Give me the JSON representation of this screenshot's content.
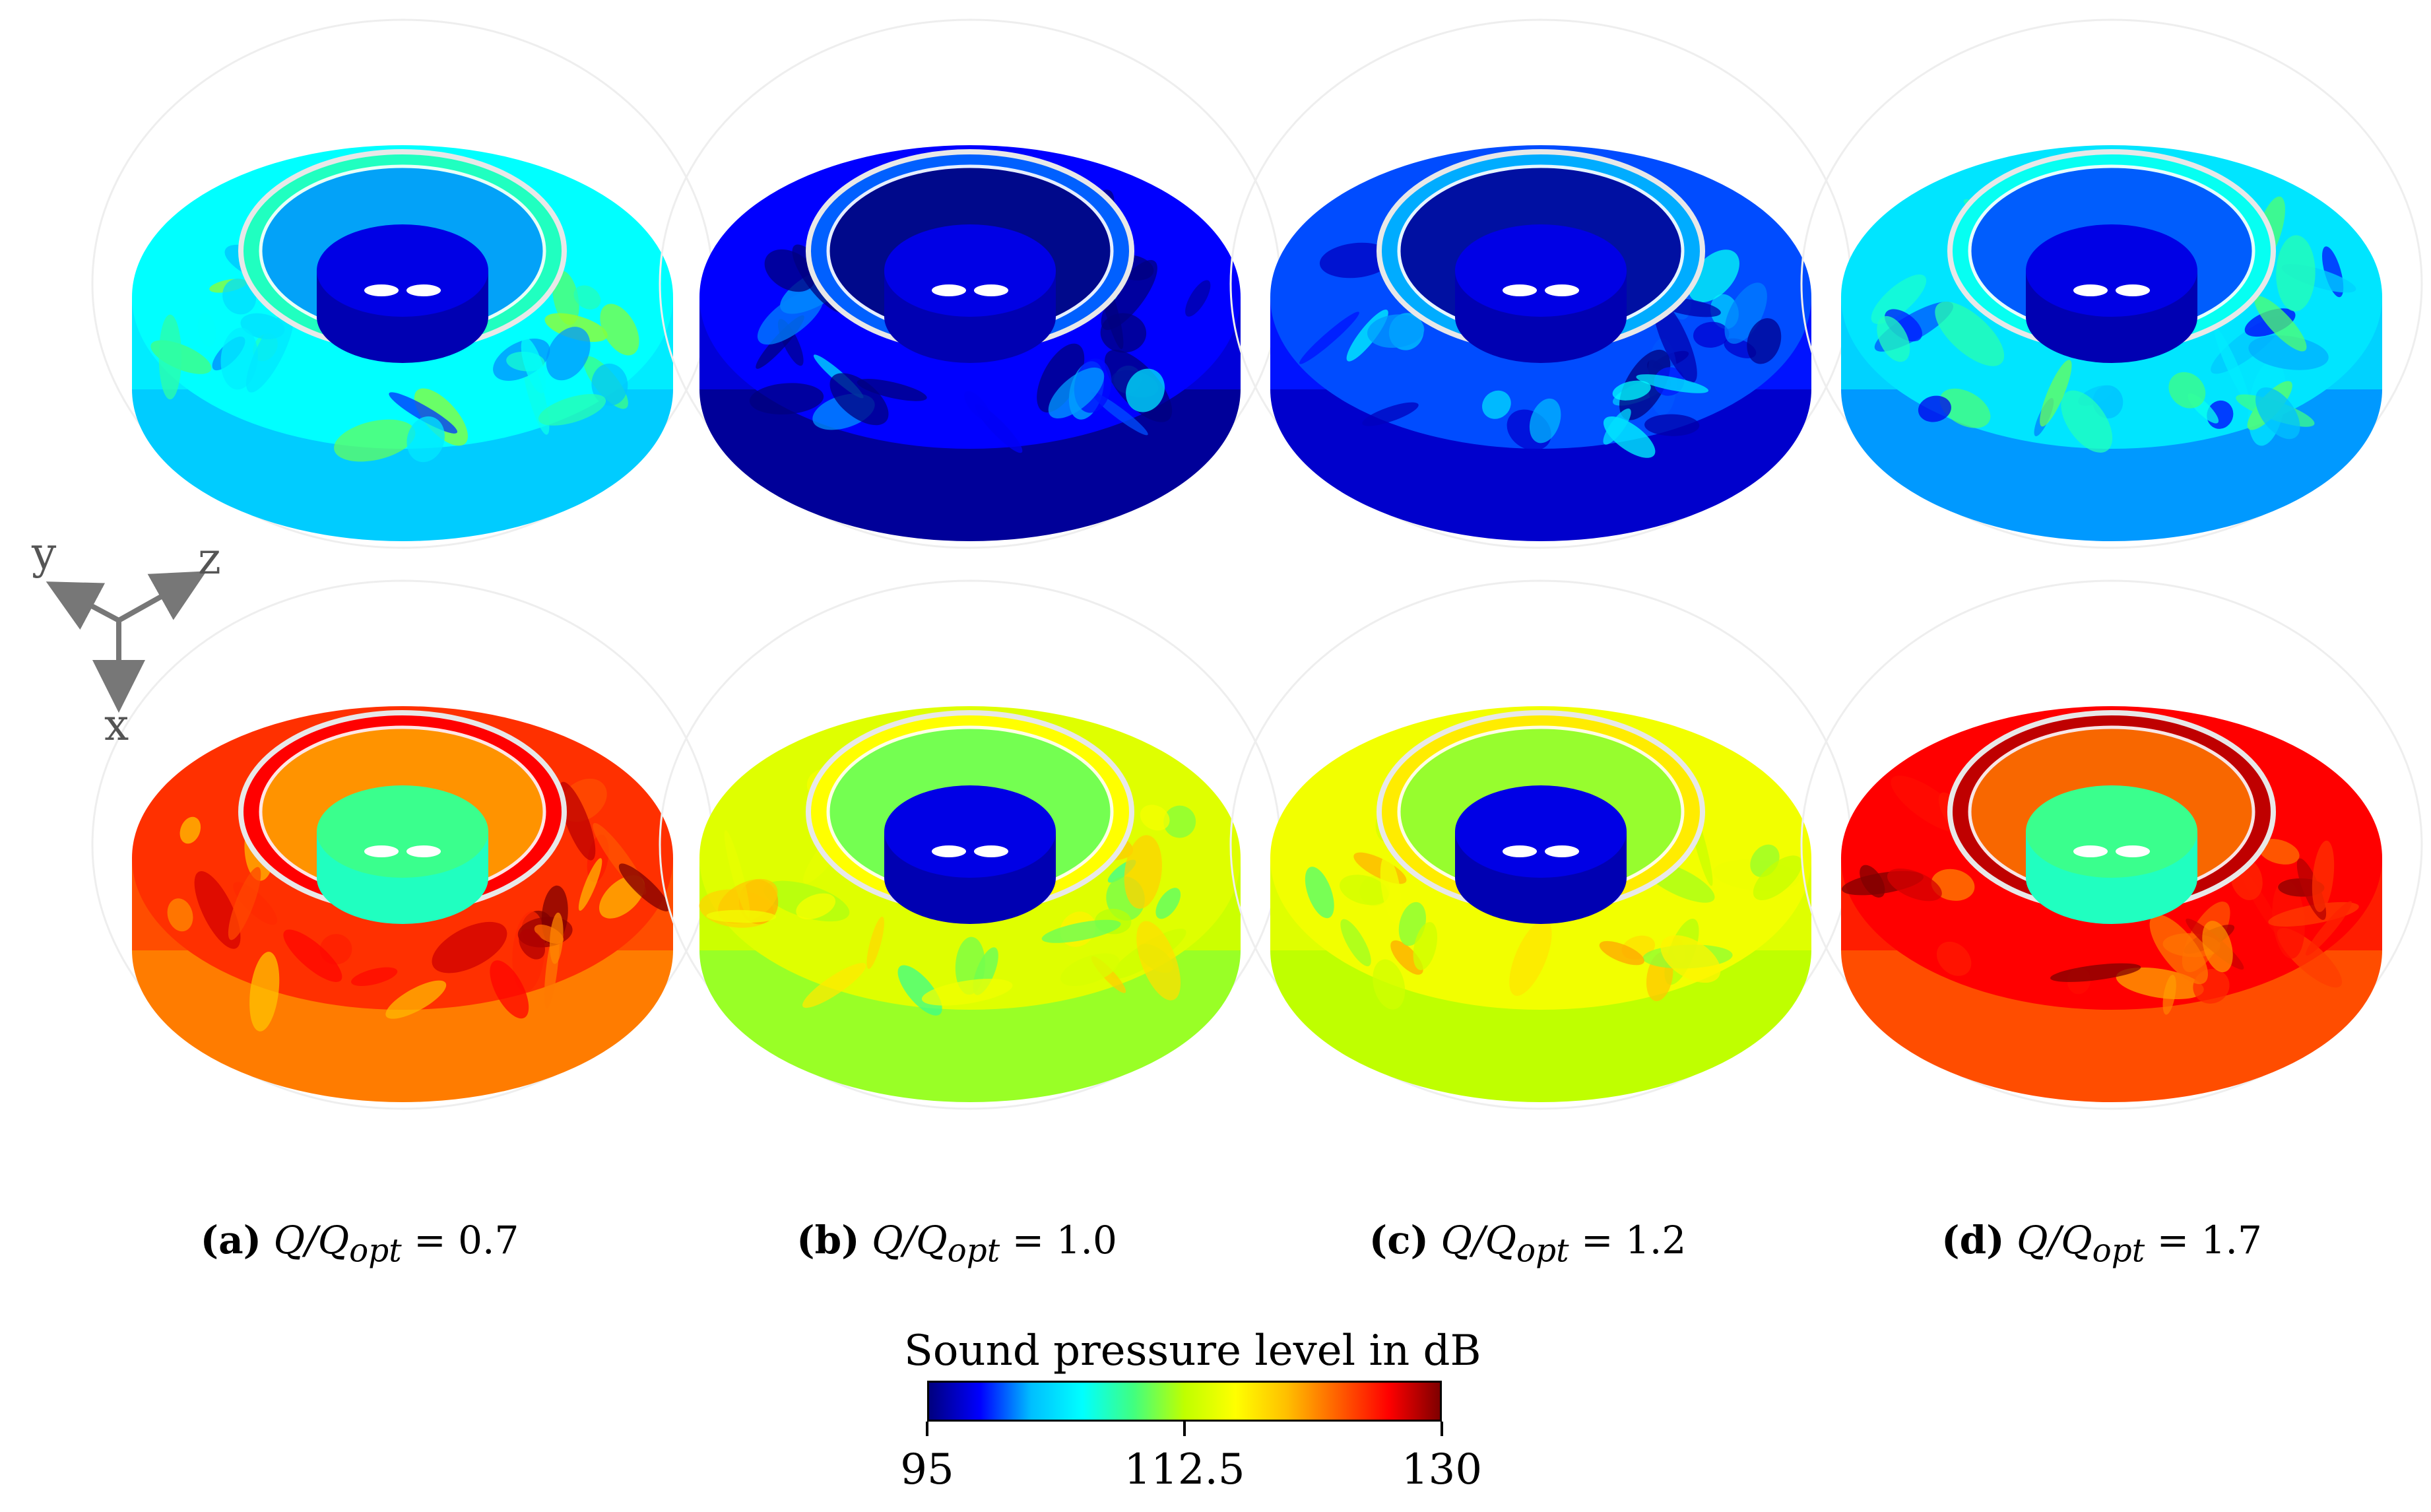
{
  "panels": [
    {
      "id": "a",
      "letter": "(a)",
      "q_label": "Q/Q",
      "q_sub": "opt",
      "q_value": "= 0.7",
      "top_level": 0.3,
      "bottom_level": 0.85,
      "bottom_hub": 0.35,
      "top_hub": 0.04
    },
    {
      "id": "b",
      "letter": "(b)",
      "q_label": "Q/Q",
      "q_sub": "opt",
      "q_value": "= 1.0",
      "top_level": 0.1,
      "bottom_level": 0.55,
      "bottom_hub": 0.04,
      "top_hub": 0.04
    },
    {
      "id": "c",
      "letter": "(c)",
      "q_label": "Q/Q",
      "q_sub": "opt",
      "q_value": "= 1.2",
      "top_level": 0.14,
      "bottom_level": 0.58,
      "bottom_hub": 0.04,
      "top_hub": 0.04
    },
    {
      "id": "d",
      "letter": "(d)",
      "q_label": "Q/Q",
      "q_sub": "opt",
      "q_value": "= 1.7",
      "top_level": 0.26,
      "bottom_level": 0.9,
      "bottom_hub": 0.35,
      "top_hub": 0.04
    }
  ],
  "axes_triad": {
    "y": "y",
    "z": "z",
    "x": "x"
  },
  "colorbar": {
    "title": "Sound pressure level in dB",
    "min": 95,
    "max": 130,
    "ticks": [
      "95",
      "112.5",
      "130"
    ],
    "tick_values": [
      95,
      112.5,
      130
    ],
    "colormap": [
      "#00007f",
      "#0000ff",
      "#00bfff",
      "#00ffff",
      "#40ff80",
      "#bfff00",
      "#ffff00",
      "#ffbf00",
      "#ff6000",
      "#ff0000",
      "#7f0000"
    ]
  }
}
